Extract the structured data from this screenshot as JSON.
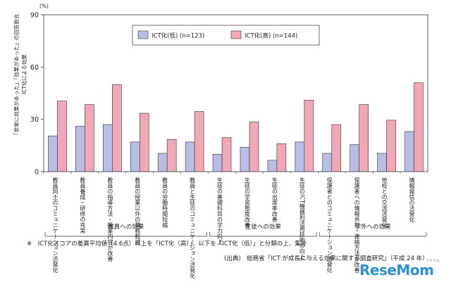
{
  "chart_data": {
    "type": "bar",
    "y_unit": "(%)",
    "ylabel": "「非常に効果があった」「効果があった」の回答割合",
    "ylabel_prefix": "ICT化による効果",
    "ylim": [
      0,
      90
    ],
    "yticks": [
      "0",
      "30",
      "60",
      "90"
    ],
    "legend_position": "top",
    "series": [
      {
        "name": "ICT化(低) (n=123)",
        "color": "#b8bde6",
        "values": [
          20.5,
          26,
          27,
          17,
          10.5,
          17,
          10,
          14,
          6.5,
          17,
          10.5,
          15.5,
          10.5,
          23
        ]
      },
      {
        "name": "ICT化(高) (n=144)",
        "color": "#f2a7b6",
        "values": [
          40.5,
          38.5,
          50,
          33.5,
          18.5,
          34.5,
          19.5,
          28.5,
          16,
          41,
          27,
          38.5,
          29.5,
          51
        ]
      }
    ],
    "categories": [
      "教員同士のコミュニケーション活発化",
      "教員養成・研修の充実",
      "教員の指導方法・授業内容が改善",
      "教員の授業以外の業務軽減",
      "教員の労働時間短縮",
      "教員と生徒のコミュニケーション活発化",
      "生徒の基礎科目の学力向上",
      "生徒の学習態度改善",
      "生徒の出席率改善",
      "生徒のICT機器利活用技術の向上",
      "保護者とのコミュニケーション活発化",
      "保護者への情報共有・連絡方法が改善",
      "他校との交流活発化",
      "情報発信の活発化"
    ],
    "groups": [
      {
        "label": "教員への効果",
        "start": 0,
        "end": 5
      },
      {
        "label": "生徒への効果",
        "start": 6,
        "end": 9
      },
      {
        "label": "学外への効果",
        "start": 10,
        "end": 13
      }
    ]
  },
  "footnote": "※　ICT化スコアの差異平均値（4.6点）以上を「ICT化（高）」、以下を「ICT化（低）」と分類の上、集計",
  "source": "(出典)　総務省「ICT が成長に与える効果に関する調査研究」（平成 24 年）",
  "logo": {
    "text": "ReseMom",
    "sub": "リセマム"
  }
}
